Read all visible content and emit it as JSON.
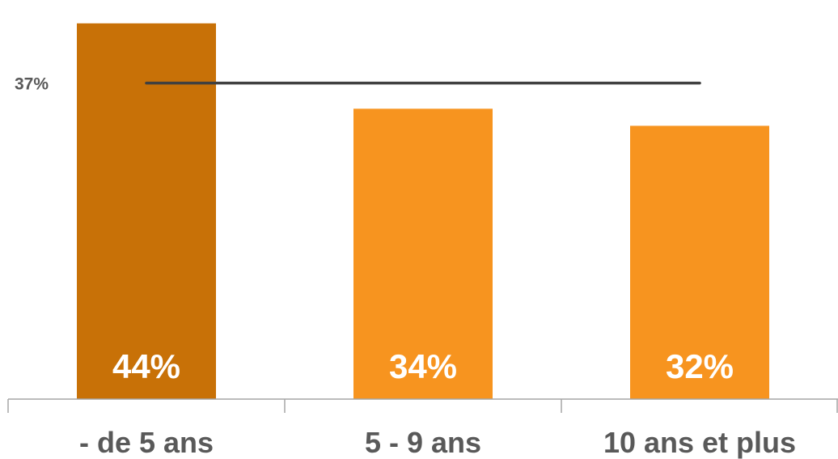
{
  "chart_data": {
    "type": "bar",
    "categories": [
      "- de 5 ans",
      "5 - 9 ans",
      "10 ans et plus"
    ],
    "values": [
      44,
      34,
      32
    ],
    "value_labels": [
      "44%",
      "34%",
      "32%"
    ],
    "reference_line": {
      "value": 37,
      "label": "37%",
      "color": "#404040"
    },
    "colors": {
      "highlight": "#C87107",
      "default": "#F7941F",
      "axis": "#A6A6A6",
      "category_text": "#595959",
      "value_text": "#FFFFFF"
    },
    "highlight_index": 0,
    "ylim": [
      0,
      45.5
    ],
    "grid": false,
    "legend": "none"
  }
}
